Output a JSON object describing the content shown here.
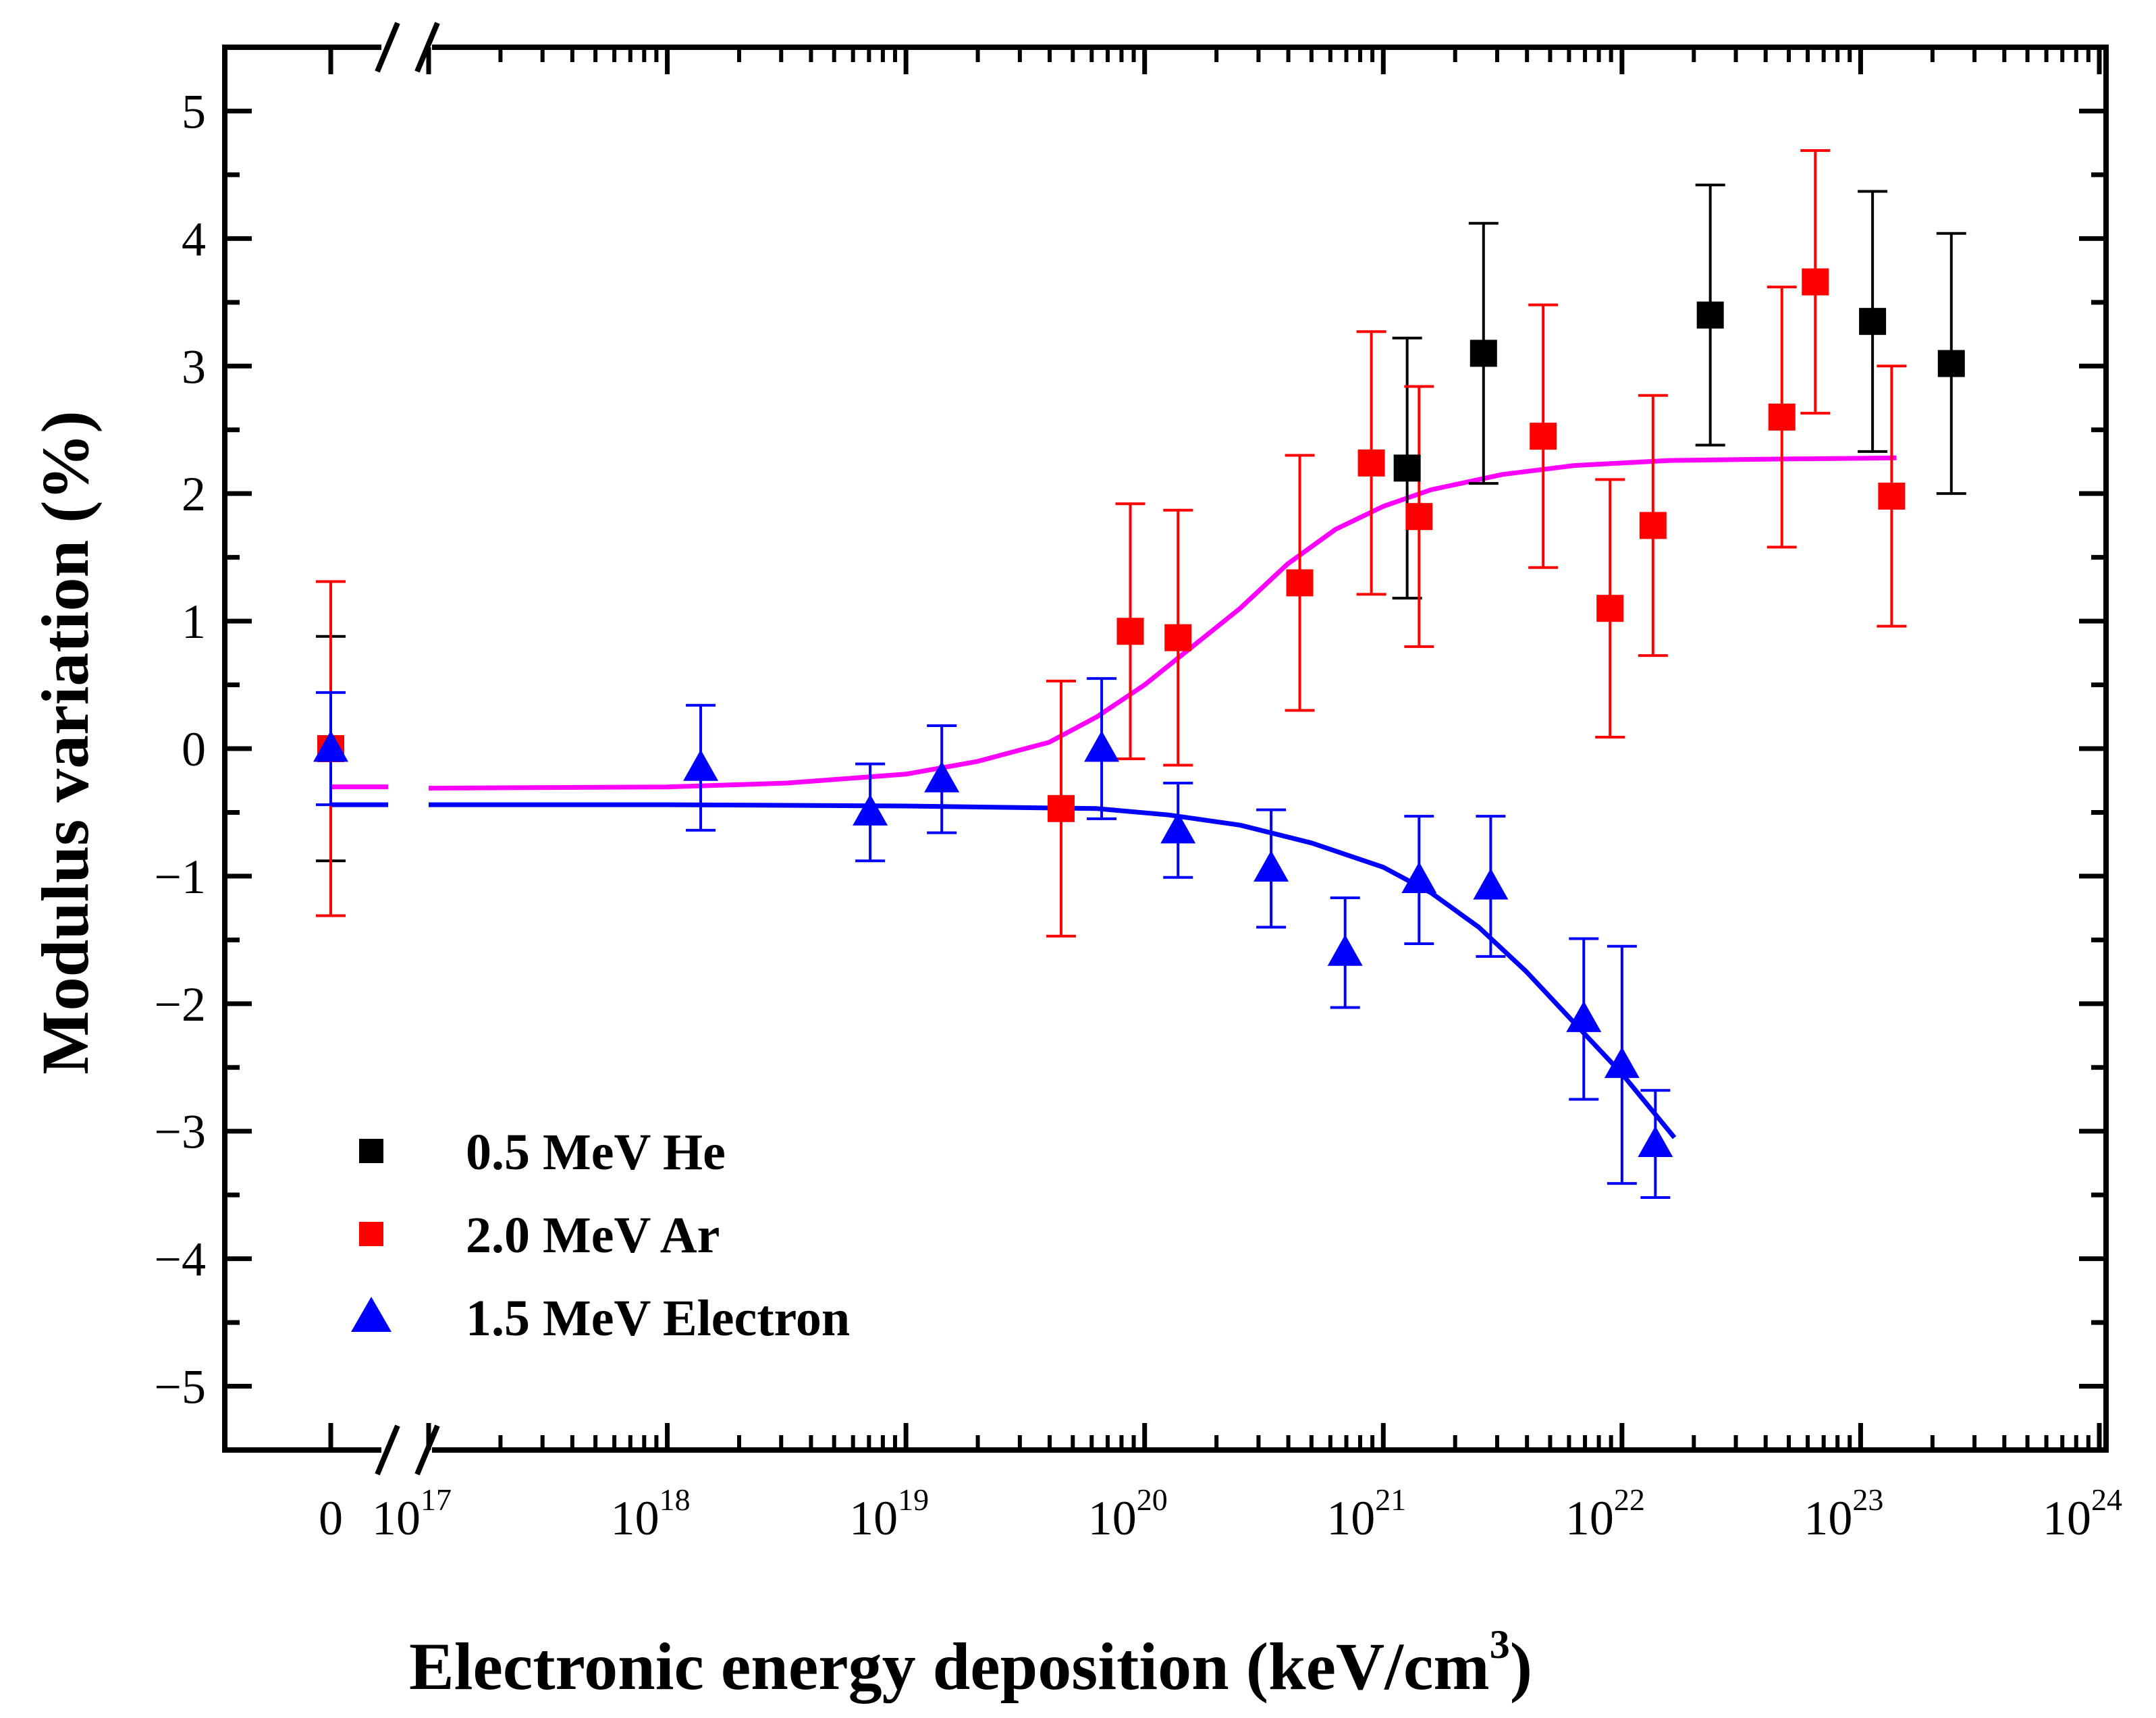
{
  "chart_data": {
    "type": "scatter",
    "title": "",
    "xlabel": "Electronic energy deposition (keV/cm",
    "xlabel_sup": "3",
    "xlabel_close": ")",
    "ylabel": "Modulus variation (%)",
    "xscale": "log with broken axis at zero",
    "xlim_log10": [
      17,
      24
    ],
    "ylim": [
      -5.5,
      5.5
    ],
    "x_zero_tick": "0",
    "x_ticks": [
      {
        "exp": 17,
        "base": "10",
        "sup": "17"
      },
      {
        "exp": 18,
        "base": "10",
        "sup": "18"
      },
      {
        "exp": 19,
        "base": "10",
        "sup": "19"
      },
      {
        "exp": 20,
        "base": "10",
        "sup": "20"
      },
      {
        "exp": 21,
        "base": "10",
        "sup": "21"
      },
      {
        "exp": 22,
        "base": "10",
        "sup": "22"
      },
      {
        "exp": 23,
        "base": "10",
        "sup": "23"
      },
      {
        "exp": 24,
        "base": "10",
        "sup": "24"
      }
    ],
    "y_ticks": [
      {
        "value": 5,
        "label": "5"
      },
      {
        "value": 4,
        "label": "4"
      },
      {
        "value": 3,
        "label": "3"
      },
      {
        "value": 2,
        "label": "2"
      },
      {
        "value": 1,
        "label": "1"
      },
      {
        "value": 0,
        "label": "0"
      },
      {
        "value": -1,
        "label": "−1"
      },
      {
        "value": -2,
        "label": "−2"
      },
      {
        "value": -3,
        "label": "−3"
      },
      {
        "value": -4,
        "label": "−4"
      },
      {
        "value": -5,
        "label": "−5"
      }
    ],
    "series": [
      {
        "name": "0.5 MeV He",
        "color": "#000000",
        "marker": "square",
        "zero_point": {
          "y": 0,
          "err": 0.88
        },
        "points": [
          {
            "log10x": 21.1,
            "y": 2.2,
            "err": 1.02
          },
          {
            "log10x": 21.42,
            "y": 3.1,
            "err": 1.02
          },
          {
            "log10x": 22.37,
            "y": 3.4,
            "err": 1.02
          },
          {
            "log10x": 23.05,
            "y": 3.35,
            "err": 1.02
          },
          {
            "log10x": 23.38,
            "y": 3.02,
            "err": 1.02
          }
        ]
      },
      {
        "name": "2.0 MeV Ar",
        "color": "#ff0000",
        "marker": "square",
        "zero_point": {
          "y": 0,
          "err": 1.31
        },
        "points": [
          {
            "log10x": 19.65,
            "y": -0.47,
            "err": 1.0
          },
          {
            "log10x": 19.94,
            "y": 0.92,
            "err": 1.0
          },
          {
            "log10x": 20.14,
            "y": 0.87,
            "err": 1.0
          },
          {
            "log10x": 20.65,
            "y": 1.3,
            "err": 1.0
          },
          {
            "log10x": 20.95,
            "y": 2.24,
            "err": 1.03
          },
          {
            "log10x": 21.15,
            "y": 1.82,
            "err": 1.02
          },
          {
            "log10x": 21.67,
            "y": 2.45,
            "err": 1.03
          },
          {
            "log10x": 21.95,
            "y": 1.1,
            "err": 1.01
          },
          {
            "log10x": 22.13,
            "y": 1.75,
            "err": 1.02
          },
          {
            "log10x": 22.67,
            "y": 2.6,
            "err": 1.02
          },
          {
            "log10x": 22.81,
            "y": 3.66,
            "err": 1.03
          },
          {
            "log10x": 23.13,
            "y": 1.98,
            "err": 1.02
          }
        ]
      },
      {
        "name": "1.5 MeV Electron",
        "color": "#0000ff",
        "marker": "triangle",
        "zero_point": {
          "y": 0,
          "err": 0.44
        },
        "points": [
          {
            "log10x": 18.14,
            "y": -0.15,
            "err": 0.49
          },
          {
            "log10x": 18.85,
            "y": -0.5,
            "err": 0.38
          },
          {
            "log10x": 19.15,
            "y": -0.24,
            "err": 0.42
          },
          {
            "log10x": 19.82,
            "y": 0.0,
            "err": 0.55
          },
          {
            "log10x": 20.14,
            "y": -0.64,
            "err": 0.37
          },
          {
            "log10x": 20.53,
            "y": -0.94,
            "err": 0.46
          },
          {
            "log10x": 20.84,
            "y": -1.6,
            "err": 0.43
          },
          {
            "log10x": 21.15,
            "y": -1.03,
            "err": 0.5
          },
          {
            "log10x": 21.45,
            "y": -1.08,
            "err": 0.55
          },
          {
            "log10x": 21.84,
            "y": -2.12,
            "err": 0.63
          },
          {
            "log10x": 22.0,
            "y": -2.48,
            "err": 0.93
          },
          {
            "log10x": 22.14,
            "y": -3.1,
            "err": 0.42
          }
        ]
      }
    ],
    "fit_curves": [
      {
        "name": "Ar fit",
        "color": "#ff00ff",
        "zero_level": -0.3,
        "points": [
          [
            17,
            -0.31
          ],
          [
            18,
            -0.3
          ],
          [
            18.5,
            -0.27
          ],
          [
            19,
            -0.2
          ],
          [
            19.3,
            -0.1
          ],
          [
            19.6,
            0.05
          ],
          [
            19.8,
            0.25
          ],
          [
            20,
            0.5
          ],
          [
            20.2,
            0.8
          ],
          [
            20.4,
            1.1
          ],
          [
            20.6,
            1.45
          ],
          [
            20.8,
            1.72
          ],
          [
            21,
            1.9
          ],
          [
            21.2,
            2.03
          ],
          [
            21.5,
            2.15
          ],
          [
            21.8,
            2.22
          ],
          [
            22.2,
            2.26
          ],
          [
            22.6,
            2.27
          ],
          [
            23.15,
            2.28
          ]
        ]
      },
      {
        "name": "Electron fit",
        "color": "#0000ff",
        "zero_level": -0.44,
        "points": [
          [
            17,
            -0.44
          ],
          [
            18,
            -0.44
          ],
          [
            19,
            -0.45
          ],
          [
            19.8,
            -0.47
          ],
          [
            20.1,
            -0.52
          ],
          [
            20.4,
            -0.6
          ],
          [
            20.7,
            -0.74
          ],
          [
            21,
            -0.93
          ],
          [
            21.2,
            -1.13
          ],
          [
            21.4,
            -1.4
          ],
          [
            21.6,
            -1.75
          ],
          [
            21.8,
            -2.15
          ],
          [
            22,
            -2.55
          ],
          [
            22.22,
            -3.05
          ]
        ]
      }
    ],
    "legend_position": "bottom-left"
  }
}
